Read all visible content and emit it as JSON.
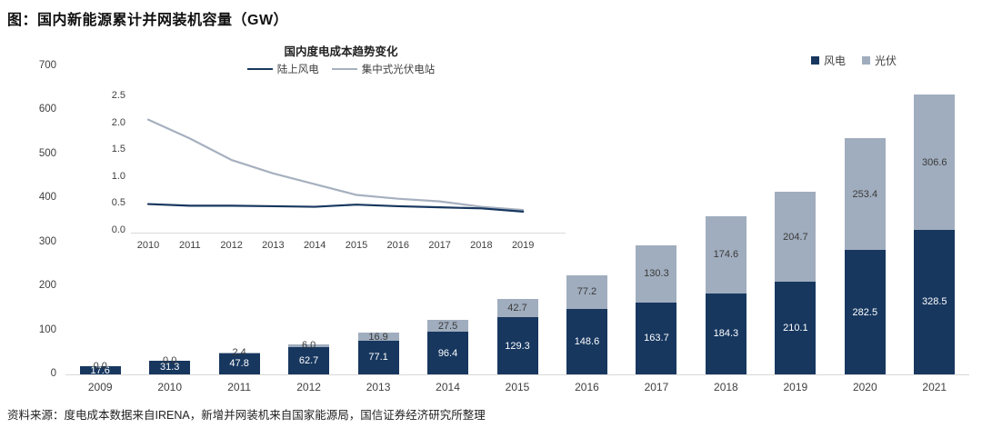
{
  "page": {
    "title": "图：国内新能源累计并网装机容量（GW）",
    "source_note": "资料来源：度电成本数据来自IRENA，新增并网装机来自国家能源局，国信证券经济研究所整理"
  },
  "colors": {
    "wind": "#17375f",
    "pv": "#a0adbe",
    "pv_line": "#a6b0bf",
    "axis_line": "#d9d9d9",
    "axis_text": "#404040",
    "label_on_wind": "#ffffff",
    "label_on_pv": "#3a3a3a"
  },
  "chart_data": [
    {
      "type": "bar",
      "stacked": true,
      "title": "国内新能源累计并网装机容量（GW）",
      "categories": [
        "2009",
        "2010",
        "2011",
        "2012",
        "2013",
        "2014",
        "2015",
        "2016",
        "2017",
        "2018",
        "2019",
        "2020",
        "2021"
      ],
      "series": [
        {
          "name": "风电",
          "color": "#17375f",
          "values": [
            17.6,
            31.3,
            47.8,
            62.7,
            77.1,
            96.4,
            129.3,
            148.6,
            163.7,
            184.3,
            210.1,
            282.5,
            328.5
          ]
        },
        {
          "name": "光伏",
          "color": "#a0adbe",
          "values": [
            0.0,
            0.0,
            2.4,
            6.0,
            16.9,
            27.5,
            42.7,
            77.2,
            130.3,
            174.6,
            204.7,
            253.4,
            306.6
          ]
        }
      ],
      "xlabel": "",
      "ylabel": "",
      "ylim": [
        0,
        700
      ],
      "yticks": [
        0,
        100,
        200,
        300,
        400,
        500,
        600,
        700
      ],
      "grid": false,
      "legend_position": "top-right"
    },
    {
      "type": "line",
      "title": "国内度电成本趋势变化",
      "x": [
        "2010",
        "2011",
        "2012",
        "2013",
        "2014",
        "2015",
        "2016",
        "2017",
        "2018",
        "2019"
      ],
      "series": [
        {
          "name": "陆上风电",
          "color": "#17375f",
          "values": [
            0.48,
            0.45,
            0.45,
            0.44,
            0.43,
            0.47,
            0.44,
            0.42,
            0.4,
            0.34
          ]
        },
        {
          "name": "集中式光伏电站",
          "color": "#a6b0bf",
          "values": [
            2.05,
            1.7,
            1.3,
            1.05,
            0.85,
            0.65,
            0.58,
            0.53,
            0.43,
            0.37
          ]
        }
      ],
      "xlabel": "",
      "ylabel": "",
      "ylim": [
        0.0,
        2.5
      ],
      "yticks": [
        0.0,
        0.5,
        1.0,
        1.5,
        2.0,
        2.5
      ],
      "grid": false,
      "legend_position": "top"
    }
  ]
}
